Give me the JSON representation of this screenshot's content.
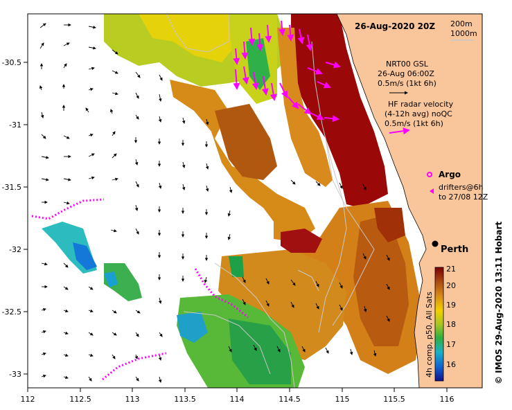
{
  "map": {
    "title": "26-Aug-2020 20Z",
    "isobath_legend": [
      "200m",
      "1000m"
    ],
    "credit": "© IMOS 29-Aug-2020 13:11 Hobart",
    "place_label": "Perth",
    "lon_ticks": [
      "112",
      "112.5",
      "113",
      "113.5",
      "114",
      "114.5",
      "115",
      "115.5",
      "116"
    ],
    "lat_ticks": [
      "-30.5",
      "-31",
      "-31.5",
      "-32",
      "-32.5",
      "-33"
    ],
    "legend": {
      "model_lines": [
        "NRT00 GSL",
        "26-Aug 06:00Z",
        "0.5m/s (1kt 6h)"
      ],
      "radar_lines": [
        "HF radar velocity",
        "(4-12h avg) noQC",
        "0.5m/s (1kt 6h)"
      ],
      "argo_label": "Argo",
      "drifter_lines": [
        "drifters@6h",
        "to 27/08 12Z"
      ]
    },
    "colorbar": {
      "title": "4h comp, p50, All Sats",
      "ticks": [
        "16",
        "17",
        "18",
        "19",
        "20",
        "21"
      ]
    },
    "colors": {
      "land": "#f9c59a",
      "radar": "#ff00ff",
      "warm": "#8b0000",
      "mid": "#d48a1e",
      "cool": "#3aa84a"
    }
  }
}
